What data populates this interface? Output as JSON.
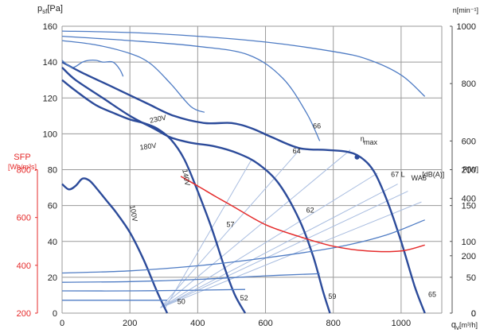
{
  "chart_data": {
    "type": "line",
    "xlabel": "q",
    "xlabel_sub": "v",
    "xlabel_unit": "[m³/h]",
    "ylabel": "p",
    "ylabel_sub": "sf",
    "ylabel_unit": "[Pa]",
    "ylabel_right_top": "n[min⁻¹]",
    "ylabel_right_bottom": "P[W]",
    "ylabel_left_red": "SFP",
    "ylabel_left_red_unit": "[Wh/m³s]",
    "xlim": [
      0,
      1120
    ],
    "ylim": [
      0,
      160
    ],
    "grid": true,
    "x_ticks": [
      "0",
      "200",
      "400",
      "600",
      "800",
      "1000"
    ],
    "y_ticks": [
      "0",
      "20",
      "40",
      "60",
      "80",
      "100",
      "120",
      "140",
      "160"
    ],
    "speed_ticks": [
      "0",
      "200",
      "400",
      "600",
      "800",
      "1000"
    ],
    "power_ticks": [
      "0",
      "50",
      "100",
      "150",
      "200"
    ],
    "sfp_ticks": [
      "200",
      "400",
      "600",
      "800"
    ],
    "colors": {
      "curve": "#2c4b9a",
      "thin": "#4f7cc4",
      "red": "#e52b2b",
      "iso": "#a9bde0"
    },
    "series": [
      {
        "name": "230V",
        "role": "pressure",
        "x": [
          0,
          60,
          150,
          250,
          330,
          420,
          500,
          560,
          620,
          700,
          780,
          840,
          880,
          920,
          960,
          1000,
          1040,
          1070
        ],
        "y": [
          140,
          134,
          126,
          117,
          110,
          106,
          106,
          103,
          98,
          92,
          91,
          90,
          87,
          79,
          62,
          40,
          15,
          0
        ]
      },
      {
        "name": "180V",
        "role": "pressure",
        "x": [
          0,
          40,
          120,
          200,
          270,
          320,
          380,
          450,
          520,
          580,
          640,
          700,
          740,
          770,
          790
        ],
        "y": [
          137,
          130,
          120,
          110,
          103,
          98,
          95,
          93,
          89,
          83,
          72,
          52,
          32,
          12,
          0
        ]
      },
      {
        "name": "140V",
        "role": "pressure",
        "x": [
          0,
          40,
          100,
          160,
          200,
          240,
          280,
          320,
          360,
          400,
          440,
          480,
          510,
          540
        ],
        "y": [
          130,
          124,
          116,
          111,
          108,
          106,
          103,
          97,
          86,
          68,
          48,
          25,
          10,
          0
        ]
      },
      {
        "name": "100V",
        "role": "pressure",
        "x": [
          0,
          20,
          40,
          60,
          80,
          100,
          130,
          160,
          200,
          240,
          280,
          310
        ],
        "y": [
          72,
          69,
          71,
          75,
          74,
          70,
          63,
          56,
          45,
          30,
          12,
          0
        ]
      },
      {
        "name": "",
        "role": "pressure",
        "x": [
          0,
          30,
          60,
          80,
          100,
          120,
          150,
          170,
          180
        ],
        "y": [
          141,
          137,
          140,
          141,
          141,
          140,
          140,
          136,
          132
        ]
      },
      {
        "name": "",
        "role": "speed",
        "x": [
          0,
          200,
          400,
          600,
          800,
          900,
          1000,
          1070
        ],
        "y": [
          983,
          978,
          965,
          945,
          912,
          885,
          830,
          755
        ]
      },
      {
        "name": "",
        "role": "speed",
        "x": [
          0,
          200,
          400,
          550,
          650,
          720,
          760
        ],
        "y": [
          965,
          950,
          930,
          900,
          820,
          700,
          600
        ]
      },
      {
        "name": "",
        "role": "speed",
        "x": [
          0,
          100,
          200,
          260,
          320,
          380,
          420
        ],
        "y": [
          950,
          935,
          905,
          870,
          800,
          720,
          700
        ]
      },
      {
        "name": "",
        "role": "power",
        "x": [
          0,
          200,
          400,
          600,
          800,
          950,
          1070
        ],
        "y": [
          56,
          59,
          66,
          77,
          91,
          108,
          130
        ]
      },
      {
        "name": "",
        "role": "power",
        "x": [
          0,
          200,
          400,
          600,
          760
        ],
        "y": [
          43,
          44,
          47,
          52,
          55
        ]
      },
      {
        "name": "",
        "role": "power",
        "x": [
          0,
          200,
          400,
          540
        ],
        "y": [
          31,
          31,
          32,
          33
        ]
      },
      {
        "name": "",
        "role": "power",
        "x": [
          0,
          150,
          310
        ],
        "y": [
          18,
          18,
          18
        ]
      },
      {
        "name": "",
        "role": "sfp",
        "x": [
          350,
          400,
          450,
          500,
          600,
          700,
          800,
          900,
          1000,
          1070
        ],
        "y": [
          772,
          732,
          690,
          650,
          570,
          520,
          480,
          460,
          460,
          485
        ]
      }
    ],
    "iso_lines": [
      {
        "label": "50",
        "x": [
          305,
          560
        ],
        "y": [
          3,
          86
        ]
      },
      {
        "label": "52",
        "x": [
          290,
          700
        ],
        "y": [
          3,
          91
        ]
      },
      {
        "label": "57",
        "x": [
          290,
          850
        ],
        "y": [
          3,
          91
        ]
      },
      {
        "label": "62",
        "x": [
          290,
          930
        ],
        "y": [
          3,
          78
        ]
      },
      {
        "label": "64",
        "x": [
          290,
          990
        ],
        "y": [
          3,
          72
        ]
      },
      {
        "label": "66",
        "x": [
          290,
          1020
        ],
        "y": [
          3,
          68
        ]
      },
      {
        "label": "67",
        "x": [
          290,
          1060
        ],
        "y": [
          3,
          62
        ]
      }
    ],
    "annotations": [
      {
        "text": "230V",
        "x": 260,
        "y": 106
      },
      {
        "text": "180V",
        "x": 230,
        "y": 91
      },
      {
        "text": "140V",
        "x": 355,
        "y": 80
      },
      {
        "text": "100V",
        "x": 200,
        "y": 60
      },
      {
        "text": "50",
        "x": 340,
        "y": 5
      },
      {
        "text": "52",
        "x": 525,
        "y": 7
      },
      {
        "text": "57",
        "x": 485,
        "y": 48
      },
      {
        "text": "59",
        "x": 785,
        "y": 8
      },
      {
        "text": "62",
        "x": 720,
        "y": 56
      },
      {
        "text": "64",
        "x": 680,
        "y": 89
      },
      {
        "text": "65",
        "x": 1080,
        "y": 9
      },
      {
        "text": "66",
        "x": 740,
        "y": 103
      },
      {
        "text": "67 L",
        "x": 970,
        "y": 76
      },
      {
        "text": "WA5",
        "x": 1030,
        "y": 74,
        "small": true
      },
      {
        "text": "[dB(A)]",
        "x": 1062,
        "y": 76
      },
      {
        "text": "η",
        "x": 880,
        "y": 96
      },
      {
        "text": "max",
        "x": 890,
        "y": 94,
        "small": true
      }
    ],
    "eta_max_point": {
      "x": 870,
      "y": 87
    }
  }
}
